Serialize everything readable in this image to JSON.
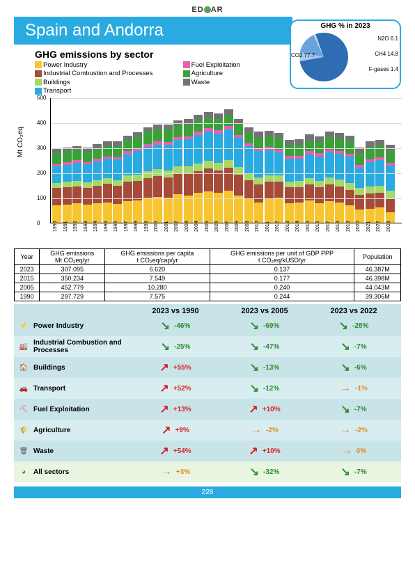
{
  "logo": "ED  AR",
  "title": "Spain and Andorra",
  "pie": {
    "title": "GHG % in 2023",
    "slices": [
      {
        "label": "CO2 77.7",
        "value": 77.7,
        "color": "#2e6db4"
      },
      {
        "label": "N2O 6.1",
        "value": 6.1,
        "color": "#a6c8ea"
      },
      {
        "label": "CH4 14.8",
        "value": 14.8,
        "color": "#6aa2db"
      },
      {
        "label": "F-gases 1.4",
        "value": 1.4,
        "color": "#c5d9f0"
      }
    ]
  },
  "chart": {
    "title": "GHG emissions by sector",
    "ylabel": "Mt CO₂eq",
    "ymax": 500,
    "ytick_step": 100,
    "sectors": [
      {
        "key": "power",
        "label": "Power Industry",
        "color": "#f7c531"
      },
      {
        "key": "ind",
        "label": "Industrial Combustion and Processes",
        "color": "#a64a3a"
      },
      {
        "key": "build",
        "label": "Buildings",
        "color": "#a6d96a"
      },
      {
        "key": "trans",
        "label": "Transport",
        "color": "#29abe2"
      },
      {
        "key": "fuel",
        "label": "Fuel Exploitation",
        "color": "#e85fb1"
      },
      {
        "key": "agri",
        "label": "Agriculture",
        "color": "#3aa03a"
      },
      {
        "key": "waste",
        "label": "Waste",
        "color": "#737373"
      }
    ],
    "years": [
      "1990",
      "1991",
      "1992",
      "1993",
      "1994",
      "1995",
      "1996",
      "1997",
      "1998",
      "1999",
      "2000",
      "2001",
      "2002",
      "2003",
      "2004",
      "2005",
      "2006",
      "2007",
      "2008",
      "2009",
      "2010",
      "2011",
      "2012",
      "2013",
      "2014",
      "2015",
      "2016",
      "2017",
      "2018",
      "2019",
      "2020",
      "2021",
      "2022",
      "2023"
    ],
    "stacks": [
      {
        "power": 70,
        "ind": 70,
        "build": 20,
        "trans": 65,
        "fuel": 10,
        "agri": 45,
        "waste": 15
      },
      {
        "power": 72,
        "ind": 70,
        "build": 22,
        "trans": 68,
        "fuel": 10,
        "agri": 45,
        "waste": 15
      },
      {
        "power": 78,
        "ind": 68,
        "build": 22,
        "trans": 72,
        "fuel": 10,
        "agri": 42,
        "waste": 15
      },
      {
        "power": 74,
        "ind": 66,
        "build": 22,
        "trans": 72,
        "fuel": 10,
        "agri": 40,
        "waste": 16
      },
      {
        "power": 78,
        "ind": 70,
        "build": 22,
        "trans": 76,
        "fuel": 10,
        "agri": 42,
        "waste": 16
      },
      {
        "power": 82,
        "ind": 74,
        "build": 22,
        "trans": 78,
        "fuel": 10,
        "agri": 42,
        "waste": 17
      },
      {
        "power": 75,
        "ind": 72,
        "build": 24,
        "trans": 82,
        "fuel": 10,
        "agri": 45,
        "waste": 17
      },
      {
        "power": 88,
        "ind": 78,
        "build": 24,
        "trans": 84,
        "fuel": 12,
        "agri": 45,
        "waste": 18
      },
      {
        "power": 90,
        "ind": 78,
        "build": 26,
        "trans": 92,
        "fuel": 12,
        "agri": 46,
        "waste": 18
      },
      {
        "power": 100,
        "ind": 80,
        "build": 28,
        "trans": 96,
        "fuel": 12,
        "agri": 48,
        "waste": 19
      },
      {
        "power": 105,
        "ind": 82,
        "build": 28,
        "trans": 98,
        "fuel": 12,
        "agri": 48,
        "waste": 19
      },
      {
        "power": 100,
        "ind": 82,
        "build": 28,
        "trans": 102,
        "fuel": 12,
        "agri": 48,
        "waste": 20
      },
      {
        "power": 115,
        "ind": 84,
        "build": 28,
        "trans": 104,
        "fuel": 12,
        "agri": 46,
        "waste": 20
      },
      {
        "power": 110,
        "ind": 86,
        "build": 30,
        "trans": 108,
        "fuel": 12,
        "agri": 48,
        "waste": 21
      },
      {
        "power": 120,
        "ind": 88,
        "build": 30,
        "trans": 112,
        "fuel": 14,
        "agri": 46,
        "waste": 21
      },
      {
        "power": 125,
        "ind": 92,
        "build": 32,
        "trans": 115,
        "fuel": 14,
        "agri": 44,
        "waste": 22
      },
      {
        "power": 120,
        "ind": 90,
        "build": 30,
        "trans": 118,
        "fuel": 14,
        "agri": 44,
        "waste": 22
      },
      {
        "power": 128,
        "ind": 92,
        "build": 30,
        "trans": 122,
        "fuel": 14,
        "agri": 46,
        "waste": 23
      },
      {
        "power": 110,
        "ind": 84,
        "build": 30,
        "trans": 115,
        "fuel": 12,
        "agri": 42,
        "waste": 23
      },
      {
        "power": 98,
        "ind": 72,
        "build": 28,
        "trans": 108,
        "fuel": 12,
        "agri": 42,
        "waste": 23
      },
      {
        "power": 82,
        "ind": 72,
        "build": 28,
        "trans": 105,
        "fuel": 12,
        "agri": 42,
        "waste": 23
      },
      {
        "power": 95,
        "ind": 70,
        "build": 26,
        "trans": 100,
        "fuel": 12,
        "agri": 42,
        "waste": 23
      },
      {
        "power": 100,
        "ind": 64,
        "build": 26,
        "trans": 92,
        "fuel": 12,
        "agri": 42,
        "waste": 23
      },
      {
        "power": 80,
        "ind": 62,
        "build": 24,
        "trans": 90,
        "fuel": 12,
        "agri": 42,
        "waste": 23
      },
      {
        "power": 82,
        "ind": 62,
        "build": 24,
        "trans": 90,
        "fuel": 10,
        "agri": 44,
        "waste": 23
      },
      {
        "power": 90,
        "ind": 64,
        "build": 26,
        "trans": 94,
        "fuel": 12,
        "agri": 44,
        "waste": 23
      },
      {
        "power": 80,
        "ind": 62,
        "build": 26,
        "trans": 98,
        "fuel": 12,
        "agri": 46,
        "waste": 23
      },
      {
        "power": 88,
        "ind": 66,
        "build": 28,
        "trans": 100,
        "fuel": 12,
        "agri": 48,
        "waste": 23
      },
      {
        "power": 82,
        "ind": 64,
        "build": 28,
        "trans": 102,
        "fuel": 12,
        "agri": 48,
        "waste": 23
      },
      {
        "power": 70,
        "ind": 62,
        "build": 28,
        "trans": 104,
        "fuel": 12,
        "agri": 50,
        "waste": 23
      },
      {
        "power": 55,
        "ind": 56,
        "build": 28,
        "trans": 82,
        "fuel": 10,
        "agri": 48,
        "waste": 22
      },
      {
        "power": 58,
        "ind": 60,
        "build": 28,
        "trans": 96,
        "fuel": 12,
        "agri": 48,
        "waste": 23
      },
      {
        "power": 62,
        "ind": 58,
        "build": 28,
        "trans": 102,
        "fuel": 12,
        "agri": 48,
        "waste": 23
      },
      {
        "power": 44,
        "ind": 54,
        "build": 30,
        "trans": 100,
        "fuel": 12,
        "agri": 48,
        "waste": 23
      }
    ]
  },
  "table": {
    "headers": [
      "Year",
      "GHG emissions\nMt CO₂eq/yr",
      "GHG emissions per capita\nt CO₂eq/cap/yr",
      "GHG emissions per unit of GDP PPP\nt CO₂eq/kUSD/yr",
      "Population"
    ],
    "rows": [
      [
        "2023",
        "307.095",
        "6.620",
        "0.137",
        "46.387M"
      ],
      [
        "2015",
        "350.234",
        "7.549",
        "0.177",
        "46.398M"
      ],
      [
        "2005",
        "452.779",
        "10.280",
        "0.240",
        "44.043M"
      ],
      [
        "1990",
        "297.729",
        "7.575",
        "0.244",
        "39.306M"
      ]
    ]
  },
  "trends": {
    "cols": [
      "2023 vs 1990",
      "2023 vs 2005",
      "2023 vs 2022"
    ],
    "rows": [
      {
        "icon": "⚡",
        "iconColor": "#c9a030",
        "name": "Power Industry",
        "vals": [
          {
            "d": "down",
            "v": "-46%",
            "c": "green"
          },
          {
            "d": "down",
            "v": "-69%",
            "c": "green"
          },
          {
            "d": "down",
            "v": "-28%",
            "c": "green"
          }
        ]
      },
      {
        "icon": "🏭",
        "iconColor": "#a64a3a",
        "name": "Industrial Combustion and Processes",
        "vals": [
          {
            "d": "down",
            "v": "-25%",
            "c": "green"
          },
          {
            "d": "down",
            "v": "-47%",
            "c": "green"
          },
          {
            "d": "down",
            "v": "-7%",
            "c": "green"
          }
        ]
      },
      {
        "icon": "🏠",
        "iconColor": "#3aa03a",
        "name": "Buildings",
        "vals": [
          {
            "d": "up",
            "v": "+55%",
            "c": "red"
          },
          {
            "d": "down",
            "v": "-13%",
            "c": "green"
          },
          {
            "d": "down",
            "v": "-6%",
            "c": "green"
          }
        ]
      },
      {
        "icon": "🚗",
        "iconColor": "#29abe2",
        "name": "Transport",
        "vals": [
          {
            "d": "up",
            "v": "+52%",
            "c": "red"
          },
          {
            "d": "down",
            "v": "-12%",
            "c": "green"
          },
          {
            "d": "flat",
            "v": "-1%",
            "c": "orange"
          }
        ]
      },
      {
        "icon": "⛏",
        "iconColor": "#d65a9a",
        "name": "Fuel Exploitation",
        "vals": [
          {
            "d": "up",
            "v": "+13%",
            "c": "red"
          },
          {
            "d": "up",
            "v": "+10%",
            "c": "red"
          },
          {
            "d": "down",
            "v": "-7%",
            "c": "green"
          }
        ]
      },
      {
        "icon": "🌾",
        "iconColor": "#3aa03a",
        "name": "Agriculture",
        "vals": [
          {
            "d": "up",
            "v": "+9%",
            "c": "red"
          },
          {
            "d": "flat",
            "v": "-2%",
            "c": "orange"
          },
          {
            "d": "flat",
            "v": "-2%",
            "c": "orange"
          }
        ]
      },
      {
        "icon": "🗑",
        "iconColor": "#555",
        "name": "Waste",
        "vals": [
          {
            "d": "up",
            "v": "+54%",
            "c": "red"
          },
          {
            "d": "up",
            "v": "+10%",
            "c": "red"
          },
          {
            "d": "flat",
            "v": "0%",
            "c": "orange"
          }
        ]
      },
      {
        "icon": "◕",
        "iconColor": "#666",
        "name": "All sectors",
        "all": true,
        "vals": [
          {
            "d": "flat",
            "v": "+3%",
            "c": "orange"
          },
          {
            "d": "down",
            "v": "-32%",
            "c": "green"
          },
          {
            "d": "down",
            "v": "-7%",
            "c": "green"
          }
        ]
      }
    ]
  },
  "pageNum": "228"
}
